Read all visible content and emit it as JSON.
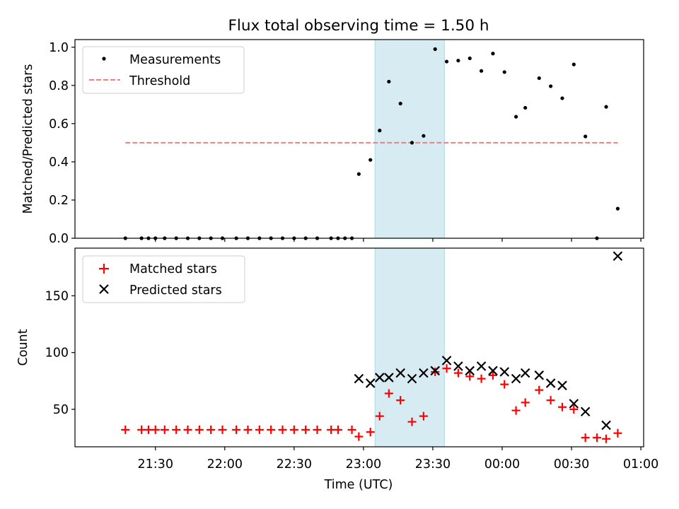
{
  "title": "Flux total observing time = 1.50 h",
  "colors": {
    "band": "#add8e6",
    "threshold": "#f08080",
    "measurement": "#000000",
    "matched": "#ff0000",
    "predicted": "#000000"
  },
  "chart_data": [
    {
      "type": "scatter",
      "ylabel": "Matched/Predicted stars",
      "xlabel": "",
      "x_unit": "hours from 21:00 UTC",
      "xlim": [
        20.92,
        25.02
      ],
      "ylim": [
        0,
        1.04
      ],
      "yticks": [
        0.0,
        0.2,
        0.4,
        0.6,
        0.8,
        1.0
      ],
      "ytick_labels": [
        "0.0",
        "0.2",
        "0.4",
        "0.6",
        "0.8",
        "1.0"
      ],
      "grid": false,
      "legend": {
        "position": "top-left",
        "entries": [
          "Measurements",
          "Threshold"
        ]
      },
      "shaded_interval": [
        "23:05",
        "23:35"
      ],
      "threshold": {
        "name": "Threshold",
        "y": 0.5,
        "x_start": "21:17",
        "x_end": "00:50"
      },
      "series": [
        {
          "name": "Measurements",
          "points": [
            [
              "21:17",
              0.0
            ],
            [
              "21:24",
              0.0
            ],
            [
              "21:27",
              0.0
            ],
            [
              "21:30",
              0.0
            ],
            [
              "21:34",
              0.0
            ],
            [
              "21:39",
              0.0
            ],
            [
              "21:44",
              0.0
            ],
            [
              "21:49",
              0.0
            ],
            [
              "21:54",
              0.0
            ],
            [
              "21:59",
              0.0
            ],
            [
              "22:05",
              0.0
            ],
            [
              "22:10",
              0.0
            ],
            [
              "22:15",
              0.0
            ],
            [
              "22:20",
              0.0
            ],
            [
              "22:25",
              0.0
            ],
            [
              "22:30",
              0.0
            ],
            [
              "22:35",
              0.0
            ],
            [
              "22:40",
              0.0
            ],
            [
              "22:46",
              0.0
            ],
            [
              "22:49",
              0.0
            ],
            [
              "22:52",
              0.0
            ],
            [
              "22:55",
              0.0
            ],
            [
              "22:58",
              0.336
            ],
            [
              "23:03",
              0.41
            ],
            [
              "23:07",
              0.564
            ],
            [
              "23:11",
              0.82
            ],
            [
              "23:16",
              0.705
            ],
            [
              "23:21",
              0.5
            ],
            [
              "23:26",
              0.536
            ],
            [
              "23:31",
              0.99
            ],
            [
              "23:36",
              0.925
            ],
            [
              "23:41",
              0.93
            ],
            [
              "23:46",
              0.942
            ],
            [
              "23:51",
              0.876
            ],
            [
              "23:56",
              0.967
            ],
            [
              "00:01",
              0.87
            ],
            [
              "00:06",
              0.636
            ],
            [
              "00:10",
              0.683
            ],
            [
              "00:16",
              0.838
            ],
            [
              "00:21",
              0.796
            ],
            [
              "00:26",
              0.733
            ],
            [
              "00:31",
              0.91
            ],
            [
              "00:36",
              0.533
            ],
            [
              "00:41",
              0.0
            ],
            [
              "00:45",
              0.688
            ],
            [
              "00:50",
              0.155
            ]
          ]
        }
      ]
    },
    {
      "type": "scatter",
      "ylabel": "Count",
      "xlabel": "Time (UTC)",
      "x_unit": "hours from 21:00 UTC",
      "xlim": [
        20.92,
        25.02
      ],
      "ylim": [
        17,
        192
      ],
      "yticks": [
        50,
        100,
        150
      ],
      "ytick_labels": [
        "50",
        "100",
        "150"
      ],
      "xticks": [
        "21:30",
        "22:00",
        "22:30",
        "23:00",
        "23:30",
        "00:00",
        "00:30",
        "01:00"
      ],
      "grid": false,
      "legend": {
        "position": "top-left",
        "entries": [
          "Matched stars",
          "Predicted stars"
        ]
      },
      "shaded_interval": [
        "23:05",
        "23:35"
      ],
      "series": [
        {
          "name": "Matched stars",
          "points": [
            [
              "21:17",
              32
            ],
            [
              "21:24",
              32
            ],
            [
              "21:27",
              32
            ],
            [
              "21:30",
              32
            ],
            [
              "21:34",
              32
            ],
            [
              "21:39",
              32
            ],
            [
              "21:44",
              32
            ],
            [
              "21:49",
              32
            ],
            [
              "21:54",
              32
            ],
            [
              "21:59",
              32
            ],
            [
              "22:05",
              32
            ],
            [
              "22:10",
              32
            ],
            [
              "22:15",
              32
            ],
            [
              "22:20",
              32
            ],
            [
              "22:25",
              32
            ],
            [
              "22:30",
              32
            ],
            [
              "22:35",
              32
            ],
            [
              "22:40",
              32
            ],
            [
              "22:46",
              32
            ],
            [
              "22:49",
              32
            ],
            [
              "22:55",
              32
            ],
            [
              "22:58",
              26
            ],
            [
              "23:03",
              30
            ],
            [
              "23:07",
              44
            ],
            [
              "23:11",
              64
            ],
            [
              "23:16",
              58
            ],
            [
              "23:21",
              39
            ],
            [
              "23:26",
              44
            ],
            [
              "23:31",
              83
            ],
            [
              "23:36",
              86
            ],
            [
              "23:41",
              82
            ],
            [
              "23:46",
              79
            ],
            [
              "23:51",
              77
            ],
            [
              "23:56",
              80
            ],
            [
              "00:01",
              72
            ],
            [
              "00:06",
              49
            ],
            [
              "00:10",
              56
            ],
            [
              "00:16",
              67
            ],
            [
              "00:21",
              58
            ],
            [
              "00:26",
              52
            ],
            [
              "00:31",
              50
            ],
            [
              "00:36",
              25
            ],
            [
              "00:41",
              25
            ],
            [
              "00:45",
              24
            ],
            [
              "00:50",
              29
            ]
          ]
        },
        {
          "name": "Predicted stars",
          "points": [
            [
              "22:58",
              77
            ],
            [
              "23:03",
              73
            ],
            [
              "23:07",
              78
            ],
            [
              "23:11",
              78
            ],
            [
              "23:16",
              82
            ],
            [
              "23:21",
              77
            ],
            [
              "23:26",
              82
            ],
            [
              "23:31",
              84
            ],
            [
              "23:36",
              93
            ],
            [
              "23:41",
              88
            ],
            [
              "23:46",
              84
            ],
            [
              "23:51",
              88
            ],
            [
              "23:56",
              84
            ],
            [
              "00:01",
              83
            ],
            [
              "00:06",
              77
            ],
            [
              "00:10",
              82
            ],
            [
              "00:16",
              80
            ],
            [
              "00:21",
              73
            ],
            [
              "00:26",
              71
            ],
            [
              "00:31",
              55
            ],
            [
              "00:36",
              48
            ],
            [
              "00:45",
              36
            ],
            [
              "00:50",
              185
            ]
          ]
        }
      ]
    }
  ]
}
